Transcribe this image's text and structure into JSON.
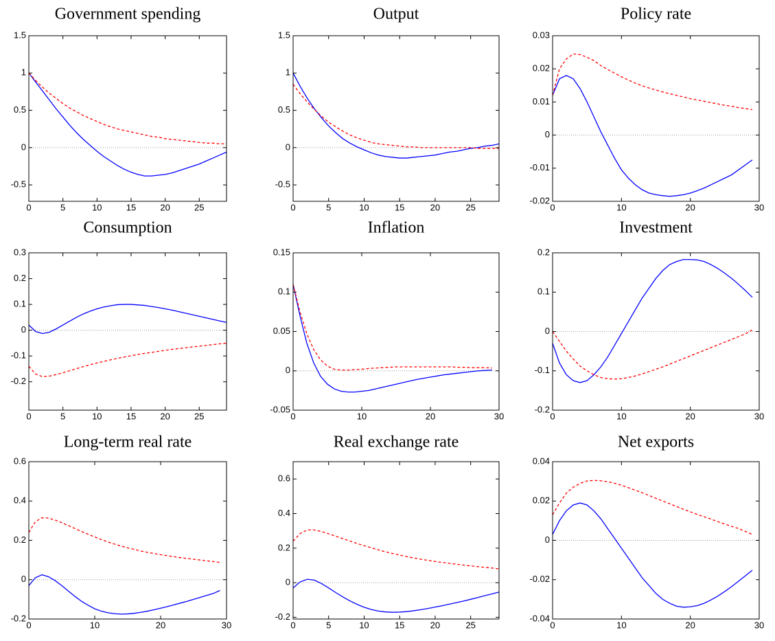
{
  "chart_data": [
    {
      "type": "line",
      "title": "Government spending",
      "x": [
        0,
        1,
        2,
        3,
        4,
        5,
        6,
        7,
        8,
        9,
        10,
        11,
        12,
        13,
        14,
        15,
        16,
        17,
        18,
        19,
        20,
        21,
        22,
        23,
        24,
        25,
        26,
        27,
        28,
        29
      ],
      "xlim": [
        0,
        29
      ],
      "xticks": [
        0,
        5,
        10,
        15,
        20,
        25
      ],
      "ylim": [
        -0.72,
        1.5
      ],
      "yticks": [
        -0.5,
        0,
        0.5,
        1,
        1.5
      ],
      "zero_line": true,
      "series": [
        {
          "color": "#0000ff",
          "style": "solid",
          "values": [
            1,
            0.88,
            0.76,
            0.64,
            0.52,
            0.41,
            0.3,
            0.2,
            0.11,
            0.03,
            -0.05,
            -0.12,
            -0.18,
            -0.24,
            -0.29,
            -0.33,
            -0.36,
            -0.38,
            -0.38,
            -0.37,
            -0.36,
            -0.34,
            -0.31,
            -0.28,
            -0.25,
            -0.22,
            -0.18,
            -0.14,
            -0.1,
            -0.06
          ]
        },
        {
          "color": "#ff0000",
          "style": "dashed",
          "values": [
            1,
            0.9,
            0.81,
            0.73,
            0.66,
            0.59,
            0.53,
            0.48,
            0.43,
            0.39,
            0.35,
            0.31,
            0.28,
            0.25,
            0.23,
            0.21,
            0.19,
            0.17,
            0.15,
            0.14,
            0.12,
            0.11,
            0.1,
            0.09,
            0.08,
            0.07,
            0.06,
            0.06,
            0.05,
            0.05
          ]
        }
      ]
    },
    {
      "type": "line",
      "title": "Output",
      "x": [
        0,
        1,
        2,
        3,
        4,
        5,
        6,
        7,
        8,
        9,
        10,
        11,
        12,
        13,
        14,
        15,
        16,
        17,
        18,
        19,
        20,
        21,
        22,
        23,
        24,
        25,
        26,
        27,
        28,
        29
      ],
      "xlim": [
        0,
        29
      ],
      "xticks": [
        0,
        5,
        10,
        15,
        20,
        25
      ],
      "ylim": [
        -0.72,
        1.5
      ],
      "yticks": [
        -0.5,
        0,
        0.5,
        1,
        1.5
      ],
      "zero_line": true,
      "series": [
        {
          "color": "#0000ff",
          "style": "solid",
          "values": [
            1.0,
            0.82,
            0.66,
            0.52,
            0.4,
            0.29,
            0.2,
            0.12,
            0.06,
            0.01,
            -0.03,
            -0.07,
            -0.1,
            -0.12,
            -0.13,
            -0.14,
            -0.14,
            -0.13,
            -0.12,
            -0.11,
            -0.1,
            -0.08,
            -0.06,
            -0.05,
            -0.03,
            -0.01,
            0.0,
            0.02,
            0.03,
            0.05
          ]
        },
        {
          "color": "#ff0000",
          "style": "dashed",
          "values": [
            0.85,
            0.72,
            0.61,
            0.51,
            0.42,
            0.34,
            0.28,
            0.22,
            0.17,
            0.13,
            0.1,
            0.07,
            0.05,
            0.04,
            0.03,
            0.02,
            0.01,
            0.01,
            0.0,
            0.0,
            0.0,
            0.0,
            0.0,
            0.0,
            0.0,
            0.0,
            -0.01,
            -0.01,
            -0.01,
            -0.01
          ]
        }
      ]
    },
    {
      "type": "line",
      "title": "Policy rate",
      "x": [
        0,
        1,
        2,
        3,
        4,
        5,
        6,
        7,
        8,
        9,
        10,
        11,
        12,
        13,
        14,
        15,
        16,
        17,
        18,
        19,
        20,
        21,
        22,
        23,
        24,
        25,
        26,
        27,
        28,
        29
      ],
      "xlim": [
        0,
        30
      ],
      "xticks": [
        0,
        10,
        20,
        30
      ],
      "ylim": [
        -0.02,
        0.03
      ],
      "yticks": [
        -0.02,
        -0.01,
        0,
        0.01,
        0.02,
        0.03
      ],
      "zero_line": true,
      "series": [
        {
          "color": "#0000ff",
          "style": "solid",
          "values": [
            0.012,
            0.017,
            0.018,
            0.017,
            0.014,
            0.01,
            0.0055,
            0.001,
            -0.003,
            -0.007,
            -0.0105,
            -0.013,
            -0.015,
            -0.0165,
            -0.0175,
            -0.018,
            -0.0183,
            -0.0185,
            -0.0183,
            -0.018,
            -0.0175,
            -0.0168,
            -0.016,
            -0.015,
            -0.014,
            -0.013,
            -0.012,
            -0.0105,
            -0.009,
            -0.0075
          ]
        },
        {
          "color": "#ff0000",
          "style": "dashed",
          "values": [
            0.012,
            0.02,
            0.023,
            0.0245,
            0.0243,
            0.0235,
            0.0225,
            0.021,
            0.0198,
            0.0187,
            0.0176,
            0.0166,
            0.0157,
            0.0149,
            0.0142,
            0.0136,
            0.013,
            0.0125,
            0.012,
            0.0115,
            0.011,
            0.0106,
            0.0102,
            0.0098,
            0.0094,
            0.009,
            0.0087,
            0.0083,
            0.008,
            0.0077
          ]
        }
      ]
    },
    {
      "type": "line",
      "title": "Consumption",
      "x": [
        0,
        1,
        2,
        3,
        4,
        5,
        6,
        7,
        8,
        9,
        10,
        11,
        12,
        13,
        14,
        15,
        16,
        17,
        18,
        19,
        20,
        21,
        22,
        23,
        24,
        25,
        26,
        27,
        28,
        29
      ],
      "xlim": [
        0,
        29
      ],
      "xticks": [
        0,
        5,
        10,
        15,
        20,
        25
      ],
      "ylim": [
        -0.31,
        0.3
      ],
      "yticks": [
        -0.2,
        -0.1,
        0,
        0.1,
        0.2,
        0.3
      ],
      "zero_line": true,
      "series": [
        {
          "color": "#0000ff",
          "style": "solid",
          "values": [
            0.02,
            -0.005,
            -0.013,
            -0.008,
            0.005,
            0.02,
            0.035,
            0.05,
            0.063,
            0.074,
            0.083,
            0.09,
            0.095,
            0.099,
            0.1,
            0.1,
            0.098,
            0.096,
            0.092,
            0.088,
            0.083,
            0.078,
            0.072,
            0.066,
            0.06,
            0.054,
            0.048,
            0.042,
            0.036,
            0.03
          ]
        },
        {
          "color": "#ff0000",
          "style": "dashed",
          "values": [
            -0.14,
            -0.17,
            -0.18,
            -0.178,
            -0.172,
            -0.165,
            -0.157,
            -0.149,
            -0.141,
            -0.134,
            -0.127,
            -0.121,
            -0.115,
            -0.109,
            -0.104,
            -0.099,
            -0.094,
            -0.09,
            -0.086,
            -0.082,
            -0.078,
            -0.074,
            -0.071,
            -0.068,
            -0.065,
            -0.062,
            -0.059,
            -0.056,
            -0.053,
            -0.05
          ]
        }
      ]
    },
    {
      "type": "line",
      "title": "Inflation",
      "x": [
        0,
        1,
        2,
        3,
        4,
        5,
        6,
        7,
        8,
        9,
        10,
        11,
        12,
        13,
        14,
        15,
        16,
        17,
        18,
        19,
        20,
        21,
        22,
        23,
        24,
        25,
        26,
        27,
        28,
        29
      ],
      "xlim": [
        0,
        30
      ],
      "xticks": [
        0,
        10,
        20,
        30
      ],
      "ylim": [
        -0.05,
        0.15
      ],
      "yticks": [
        -0.05,
        0,
        0.05,
        0.1,
        0.15
      ],
      "zero_line": true,
      "series": [
        {
          "color": "#0000ff",
          "style": "solid",
          "values": [
            0.11,
            0.07,
            0.035,
            0.01,
            -0.007,
            -0.017,
            -0.023,
            -0.026,
            -0.027,
            -0.027,
            -0.026,
            -0.025,
            -0.023,
            -0.021,
            -0.019,
            -0.017,
            -0.015,
            -0.013,
            -0.011,
            -0.0095,
            -0.008,
            -0.0065,
            -0.005,
            -0.004,
            -0.003,
            -0.002,
            -0.001,
            0,
            0.0005,
            0.001
          ]
        },
        {
          "color": "#ff0000",
          "style": "dashed",
          "values": [
            0.11,
            0.075,
            0.047,
            0.027,
            0.014,
            0.006,
            0.002,
            0.001,
            0.001,
            0.0015,
            0.002,
            0.003,
            0.0035,
            0.004,
            0.0045,
            0.005,
            0.005,
            0.005,
            0.005,
            0.005,
            0.005,
            0.005,
            0.005,
            0.005,
            0.0045,
            0.0045,
            0.004,
            0.004,
            0.004,
            0.0035
          ]
        }
      ]
    },
    {
      "type": "line",
      "title": "Investment",
      "x": [
        0,
        1,
        2,
        3,
        4,
        5,
        6,
        7,
        8,
        9,
        10,
        11,
        12,
        13,
        14,
        15,
        16,
        17,
        18,
        19,
        20,
        21,
        22,
        23,
        24,
        25,
        26,
        27,
        28,
        29
      ],
      "xlim": [
        0,
        30
      ],
      "xticks": [
        0,
        10,
        20,
        30
      ],
      "ylim": [
        -0.2,
        0.2
      ],
      "yticks": [
        -0.2,
        -0.1,
        0,
        0.1,
        0.2
      ],
      "zero_line": true,
      "series": [
        {
          "color": "#0000ff",
          "style": "solid",
          "values": [
            -0.03,
            -0.08,
            -0.11,
            -0.125,
            -0.13,
            -0.125,
            -0.11,
            -0.09,
            -0.065,
            -0.035,
            -0.005,
            0.025,
            0.055,
            0.085,
            0.11,
            0.135,
            0.155,
            0.17,
            0.178,
            0.183,
            0.183,
            0.182,
            0.178,
            0.17,
            0.16,
            0.148,
            0.135,
            0.12,
            0.104,
            0.087
          ]
        },
        {
          "color": "#ff0000",
          "style": "dashed",
          "values": [
            0,
            -0.025,
            -0.05,
            -0.07,
            -0.088,
            -0.1,
            -0.11,
            -0.117,
            -0.12,
            -0.121,
            -0.12,
            -0.117,
            -0.113,
            -0.108,
            -0.102,
            -0.096,
            -0.09,
            -0.083,
            -0.076,
            -0.069,
            -0.062,
            -0.055,
            -0.048,
            -0.041,
            -0.034,
            -0.027,
            -0.02,
            -0.013,
            -0.006,
            0.004
          ]
        }
      ]
    },
    {
      "type": "line",
      "title": "Long-term real rate",
      "x": [
        0,
        1,
        2,
        3,
        4,
        5,
        6,
        7,
        8,
        9,
        10,
        11,
        12,
        13,
        14,
        15,
        16,
        17,
        18,
        19,
        20,
        21,
        22,
        23,
        24,
        25,
        26,
        27,
        28,
        29
      ],
      "xlim": [
        0,
        30
      ],
      "xticks": [
        0,
        10,
        20,
        30
      ],
      "ylim": [
        -0.2,
        0.6
      ],
      "yticks": [
        -0.2,
        0,
        0.2,
        0.4,
        0.6
      ],
      "zero_line": true,
      "series": [
        {
          "color": "#0000ff",
          "style": "solid",
          "values": [
            -0.03,
            0.01,
            0.025,
            0.015,
            -0.005,
            -0.03,
            -0.058,
            -0.085,
            -0.11,
            -0.13,
            -0.148,
            -0.16,
            -0.168,
            -0.173,
            -0.175,
            -0.174,
            -0.171,
            -0.166,
            -0.16,
            -0.153,
            -0.145,
            -0.137,
            -0.128,
            -0.119,
            -0.11,
            -0.1,
            -0.09,
            -0.08,
            -0.07,
            -0.055
          ]
        },
        {
          "color": "#ff0000",
          "style": "dashed",
          "values": [
            0.24,
            0.295,
            0.315,
            0.313,
            0.303,
            0.29,
            0.275,
            0.26,
            0.245,
            0.231,
            0.217,
            0.204,
            0.192,
            0.181,
            0.171,
            0.162,
            0.154,
            0.146,
            0.139,
            0.133,
            0.127,
            0.122,
            0.117,
            0.112,
            0.108,
            0.104,
            0.1,
            0.096,
            0.092,
            0.088
          ]
        }
      ]
    },
    {
      "type": "line",
      "title": "Real exchange rate",
      "x": [
        0,
        1,
        2,
        3,
        4,
        5,
        6,
        7,
        8,
        9,
        10,
        11,
        12,
        13,
        14,
        15,
        16,
        17,
        18,
        19,
        20,
        21,
        22,
        23,
        24,
        25,
        26,
        27,
        28,
        29
      ],
      "xlim": [
        0,
        29
      ],
      "xticks": [
        0,
        5,
        10,
        15,
        20,
        25
      ],
      "ylim": [
        -0.21,
        0.7
      ],
      "yticks": [
        -0.2,
        0,
        0.2,
        0.4,
        0.6
      ],
      "zero_line": true,
      "series": [
        {
          "color": "#0000ff",
          "style": "solid",
          "values": [
            -0.03,
            0.005,
            0.02,
            0.015,
            -0.005,
            -0.03,
            -0.057,
            -0.082,
            -0.105,
            -0.125,
            -0.142,
            -0.155,
            -0.164,
            -0.169,
            -0.171,
            -0.17,
            -0.167,
            -0.162,
            -0.156,
            -0.149,
            -0.141,
            -0.133,
            -0.124,
            -0.115,
            -0.106,
            -0.096,
            -0.086,
            -0.075,
            -0.065,
            -0.054
          ]
        },
        {
          "color": "#ff0000",
          "style": "dashed",
          "values": [
            0.24,
            0.285,
            0.305,
            0.305,
            0.296,
            0.283,
            0.269,
            0.255,
            0.241,
            0.227,
            0.214,
            0.202,
            0.19,
            0.179,
            0.169,
            0.16,
            0.151,
            0.143,
            0.136,
            0.129,
            0.123,
            0.117,
            0.112,
            0.107,
            0.102,
            0.097,
            0.093,
            0.089,
            0.085,
            0.08
          ]
        }
      ]
    },
    {
      "type": "line",
      "title": "Net exports",
      "x": [
        0,
        1,
        2,
        3,
        4,
        5,
        6,
        7,
        8,
        9,
        10,
        11,
        12,
        13,
        14,
        15,
        16,
        17,
        18,
        19,
        20,
        21,
        22,
        23,
        24,
        25,
        26,
        27,
        28,
        29
      ],
      "xlim": [
        0,
        30
      ],
      "xticks": [
        0,
        10,
        20,
        30
      ],
      "ylim": [
        -0.04,
        0.04
      ],
      "yticks": [
        -0.04,
        -0.02,
        0,
        0.02,
        0.04
      ],
      "zero_line": true,
      "series": [
        {
          "color": "#0000ff",
          "style": "solid",
          "values": [
            0.003,
            0.01,
            0.015,
            0.018,
            0.019,
            0.018,
            0.015,
            0.011,
            0.006,
            0.001,
            -0.004,
            -0.009,
            -0.014,
            -0.019,
            -0.023,
            -0.027,
            -0.03,
            -0.032,
            -0.0335,
            -0.034,
            -0.0338,
            -0.0332,
            -0.032,
            -0.0303,
            -0.0283,
            -0.026,
            -0.0235,
            -0.0208,
            -0.018,
            -0.0152
          ]
        },
        {
          "color": "#ff0000",
          "style": "dashed",
          "values": [
            0.013,
            0.019,
            0.024,
            0.027,
            0.029,
            0.0302,
            0.0305,
            0.0303,
            0.0298,
            0.029,
            0.028,
            0.0268,
            0.0255,
            0.0242,
            0.0228,
            0.0214,
            0.02,
            0.0186,
            0.0172,
            0.0158,
            0.0145,
            0.0132,
            0.012,
            0.0108,
            0.0095,
            0.0083,
            0.0071,
            0.006,
            0.0045,
            0.003
          ]
        }
      ]
    }
  ]
}
